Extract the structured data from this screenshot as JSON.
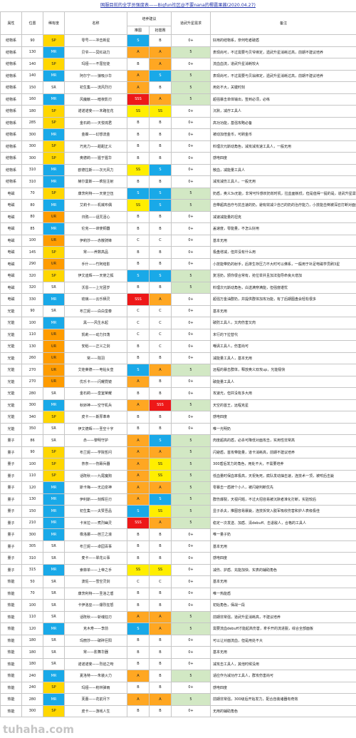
{
  "title": "国服目前的全学员强度表——Bigfun社区@不要nana的椰露果酱(2020.04.27)",
  "watermark": "tuhaha.com",
  "header": {
    "attr": "属性",
    "pos": "位置",
    "rarity": "稀有度",
    "name": "名称",
    "group": "培养建议",
    "push": "推图",
    "arena": "抢擂赛",
    "star": "道武升星需求",
    "note": "备注"
  },
  "rows": [
    {
      "attr": "结物系",
      "pos": "90",
      "rarity": "SP",
      "name": "零号——冲击新星",
      "push": "S",
      "arena": "B",
      "star": "0+",
      "note": "好用的结物系，奈何吃者破盾",
      "rc": "SP",
      "pc": "S",
      "ac": "",
      "sc": ""
    },
    {
      "attr": "结物系",
      "pos": "130",
      "rarity": "MR",
      "name": "贝爷——冥红战力",
      "push": "A",
      "arena": "A",
      "star": "5",
      "note": "表现尚可，不过需要与贝爷绑定，遗武升星消耗过高，前期不建议培养",
      "rc": "MR",
      "pc": "A",
      "ac": "A",
      "sc": "star"
    },
    {
      "attr": "结物系",
      "pos": "140",
      "rarity": "SP",
      "name": "玛娅——不屈狂徒",
      "push": "B",
      "arena": "A",
      "star": "0+",
      "note": "流血血流，道武升星消耗较大",
      "rc": "SP",
      "pc": "",
      "ac": "A",
      "sc": ""
    },
    {
      "attr": "结物系",
      "pos": "140",
      "rarity": "MR",
      "name": "阿尔宁——狼吸沙华",
      "push": "A",
      "arena": "S",
      "star": "5",
      "note": "表现尚可，不过需要与贝翁绑定，遗武升星消耗过高，前期不建议培养",
      "rc": "MR",
      "pc": "A",
      "ac": "S",
      "sc": "star"
    },
    {
      "attr": "结物系",
      "pos": "150",
      "rarity": "SR",
      "name": "初生集——流风烈刃",
      "push": "A",
      "arena": "B",
      "star": "5",
      "note": "用处不大，关键时刻",
      "rc": "",
      "pc": "A",
      "ac": "",
      "sc": "star"
    },
    {
      "attr": "结物系",
      "pos": "160",
      "rarity": "MR",
      "name": "风魔献——暗夜影刃",
      "push": "SSS",
      "arena": "A",
      "star": "5",
      "note": "超强暴击单体输出，签到必须，必练",
      "rc": "MR",
      "pc": "SSS",
      "ac": "A",
      "sc": "star"
    },
    {
      "attr": "结物系",
      "pos": "180",
      "rarity": "SP",
      "name": "诺诺诺斐——末路狂花",
      "push": "SS",
      "arena": "SS",
      "star": "0+",
      "note": "沉默，减疗工具人",
      "rc": "SP",
      "pc": "SS",
      "ac": "SS",
      "sc": ""
    },
    {
      "attr": "结物系",
      "pos": "285",
      "rarity": "SP",
      "name": "金石莉——天悦琉君",
      "push": "B",
      "arena": "B",
      "star": "0+",
      "note": "高功功能，基强攻略必备",
      "rc": "SP",
      "pc": "",
      "ac": "",
      "sc": ""
    },
    {
      "attr": "结物系",
      "pos": "300",
      "rarity": "MR",
      "name": "金蝶——幻想流金",
      "push": "B",
      "arena": "B",
      "star": "0+",
      "note": "被动加倍金币，可刷金币",
      "rc": "MR",
      "pc": "",
      "ac": "",
      "sc": ""
    },
    {
      "attr": "结物系",
      "pos": "300",
      "rarity": "SP",
      "name": "巧克力——甜甜正义",
      "push": "B",
      "arena": "B",
      "star": "0+",
      "note": "料理次元斯动角色，减攻减攻速工具人，一般无用",
      "rc": "SP",
      "pc": "",
      "ac": "",
      "sc": ""
    },
    {
      "attr": "结物系",
      "pos": "300",
      "rarity": "SP",
      "name": "奥德莉——猩于猩华",
      "push": "B",
      "arena": "B",
      "star": "0+",
      "note": "感电四度",
      "rc": "SP",
      "pc": "",
      "ac": "",
      "sc": ""
    },
    {
      "attr": "结物系",
      "pos": "310",
      "rarity": "MR",
      "name": "欧德拉斯——次元风力",
      "push": "SS",
      "arena": "S",
      "star": "0+",
      "note": "散血，减能量工具人",
      "rc": "MR",
      "pc": "SS",
      "ac": "S",
      "sc": ""
    },
    {
      "attr": "结物系",
      "pos": "310",
      "rarity": "MR",
      "name": "赫尔曼斯——疯狂注射",
      "push": "B",
      "arena": "B",
      "star": "0+",
      "note": "减攻减伤工具人，一般无用",
      "rc": "MR",
      "pc": "",
      "ac": "",
      "sc": ""
    },
    {
      "attr": "电磁",
      "pos": "70",
      "rarity": "SP",
      "name": "康茨利特——天使卫伍",
      "push": "S",
      "arena": "S",
      "star": "5",
      "note": "奶盾，奥义3s无能，非常可怜感叹奶效时机，拉血面板低，但是值得一提的是，道武升星需要双攻调血",
      "rc": "SP",
      "pc": "S",
      "ac": "S",
      "sc": "star"
    },
    {
      "attr": "电磁",
      "pos": "80",
      "rarity": "MR",
      "name": "艾莉卡——机械布偶",
      "push": "SS",
      "arena": "S",
      "star": "5",
      "note": "自带超高自疗与抗击速的奶，避有效减少自己的奶的治疗能力，小技能击倒被深召打断对面奥义",
      "rc": "MR",
      "pc": "SS",
      "ac": "S",
      "sc": "star"
    },
    {
      "attr": "电磁",
      "pos": "80",
      "rarity": "UR",
      "name": "归鸦——诅咒泪心",
      "push": "B",
      "arena": "B",
      "star": "0+",
      "note": "减速减能量的坦克",
      "rc": "UR",
      "pc": "",
      "ac": "",
      "sc": ""
    },
    {
      "attr": "电磁",
      "pos": "85",
      "rarity": "MR",
      "name": "伦克——谛使铜器",
      "push": "B",
      "arena": "B",
      "star": "0+",
      "note": "盖速度，零能量，不怎么好用",
      "rc": "MR",
      "pc": "",
      "ac": "",
      "sc": ""
    },
    {
      "attr": "电磁",
      "pos": "100",
      "rarity": "UR",
      "name": "伊莉莎——赤散骑锋",
      "push": "C",
      "arena": "C",
      "star": "0+",
      "note": "基本无用",
      "rc": "UR",
      "pc": "",
      "ac": "",
      "sc": ""
    },
    {
      "attr": "电磁",
      "pos": "145",
      "rarity": "SP",
      "name": "常——养数高品",
      "push": "B",
      "arena": "B",
      "star": "0+",
      "note": "极盘增减，但并没有什么用",
      "rc": "SP",
      "pc": "",
      "ac": "",
      "sc": ""
    },
    {
      "attr": "电磁",
      "pos": "290",
      "rarity": "UR",
      "name": "手什——竹阿结影",
      "push": "B",
      "arena": "B",
      "star": "0+",
      "note": "小技能带奶的射手，后排生存压力不大时可以佛系，一般用于补足电磁学员刷3星",
      "rc": "UR",
      "pc": "",
      "ac": "",
      "sc": ""
    },
    {
      "attr": "电磁",
      "pos": "320",
      "rarity": "SP",
      "name": "伊文迪辉——天使之狐",
      "push": "S",
      "arena": "S",
      "star": "5",
      "note": "复活奶，颁你很合常有，抢位举并且加法指导命良大增加",
      "rc": "SP",
      "pc": "S",
      "ac": "S",
      "sc": "star"
    },
    {
      "attr": "电磁",
      "pos": "320",
      "rarity": "SR",
      "name": "沃恩——上光团岁",
      "push": "B",
      "arena": "B",
      "star": "5",
      "note": "料理次元斯动角色，白送满穿满能，但强度堪忧",
      "rc": "",
      "pc": "",
      "ac": "",
      "sc": "star"
    },
    {
      "attr": "电磁",
      "pos": "330",
      "rarity": "MR",
      "name": "琉璃——云乐栖灵",
      "push": "SSS",
      "arena": "A",
      "star": "0+",
      "note": "超强万金油群奶，并提供群体加攻功能，有了后期图盘会轻松很多",
      "rc": "MR",
      "pc": "SSS",
      "ac": "A",
      "sc": ""
    },
    {
      "attr": "光能",
      "pos": "90",
      "rarity": "SR",
      "name": "布兰妮——白白蛮泰",
      "push": "C",
      "arena": "C",
      "star": "0+",
      "note": "基本无用",
      "rc": "",
      "pc": "",
      "ac": "",
      "sc": ""
    },
    {
      "attr": "光能",
      "pos": "100",
      "rarity": "MR",
      "name": "黑——风生水起",
      "push": "C",
      "arena": "C",
      "star": "0+",
      "note": "破防工具人，又肉伤害又肉",
      "rc": "MR",
      "pc": "",
      "ac": "",
      "sc": ""
    },
    {
      "attr": "光能",
      "pos": "110",
      "rarity": "UR",
      "name": "凯莉——动力扫荡",
      "push": "C",
      "arena": "C",
      "star": "0+",
      "note": "末行的下拉替代",
      "rc": "UR",
      "pc": "",
      "ac": "",
      "sc": ""
    },
    {
      "attr": "光能",
      "pos": "130",
      "rarity": "UR",
      "name": "安稻——正义之剑",
      "push": "B",
      "arena": "C",
      "star": "0+",
      "note": "嘲讽工具人，伤害尚可",
      "rc": "UR",
      "pc": "",
      "ac": "",
      "sc": ""
    },
    {
      "attr": "光能",
      "pos": "260",
      "rarity": "UR",
      "name": "常——殒羽",
      "push": "B",
      "arena": "B",
      "star": "0+",
      "note": "减能量工具人，基本无用",
      "rc": "UR",
      "pc": "",
      "ac": "",
      "sc": ""
    },
    {
      "attr": "光能",
      "pos": "270",
      "rarity": "UR",
      "name": "艾娃莱德——电钻女皇",
      "push": "S",
      "arena": "A",
      "star": "5",
      "note": "远程的暴击群体，释放奥义双攻up，光能极快",
      "rc": "UR",
      "pc": "S",
      "ac": "A",
      "sc": "star"
    },
    {
      "attr": "光能",
      "pos": "270",
      "rarity": "UR",
      "name": "优乐卡——闪耀霓镜",
      "push": "A",
      "arena": "B",
      "star": "0+",
      "note": "破能量工具人",
      "rc": "UR",
      "pc": "A",
      "ac": "",
      "sc": ""
    },
    {
      "attr": "光能",
      "pos": "280",
      "rarity": "SR",
      "name": "金石莉——皇室荣耀",
      "push": "B",
      "arena": "B",
      "star": "0+",
      "note": "攻速光，但并没有多大用",
      "rc": "",
      "pc": "",
      "ac": "",
      "sc": ""
    },
    {
      "attr": "光能",
      "pos": "300",
      "rarity": "MR",
      "name": "秋娇神——空守机兵",
      "push": "A",
      "arena": "SSS",
      "star": "5",
      "note": "天空的首王，远程克星",
      "rc": "MR",
      "pc": "A",
      "ac": "SSS",
      "sc": "star"
    },
    {
      "attr": "光能",
      "pos": "340",
      "rarity": "SP",
      "name": "皮卡——斯厚革命",
      "push": "B",
      "arena": "B",
      "star": "0+",
      "note": "感电四度",
      "rc": "SP",
      "pc": "",
      "ac": "",
      "sc": ""
    },
    {
      "attr": "光能",
      "pos": "350",
      "rarity": "SR",
      "name": "伊文德辉——圣空十字",
      "push": "B",
      "arena": "B",
      "star": "0+",
      "note": "唯一光明奶",
      "rc": "",
      "pc": "",
      "ac": "",
      "sc": ""
    },
    {
      "attr": "量子",
      "pos": "86",
      "rarity": "SR",
      "name": "赤——黎明守护",
      "push": "A",
      "arena": "S",
      "star": "5",
      "note": "肉度超高的盾，必杀可降低对面攻击，实用性非常高",
      "rc": "",
      "pc": "A",
      "ac": "S",
      "sc": "star"
    },
    {
      "attr": "量子",
      "pos": "90",
      "rarity": "SP",
      "name": "布兰妮——学院哲问",
      "push": "A",
      "arena": "A",
      "star": "5",
      "note": "闪避盾，首攻带能量，道卡消耗高，前期不建议培养",
      "rc": "SP",
      "pc": "A",
      "ac": "A",
      "sc": "star"
    },
    {
      "attr": "量子",
      "pos": "100",
      "rarity": "SP",
      "name": "奈奈——伤籁兵器",
      "push": "A",
      "arena": "SS",
      "star": "5",
      "note": "300盾后发力的角色，用处不大，不需要培养",
      "rc": "SP",
      "pc": "A",
      "ac": "SS",
      "sc": "star"
    },
    {
      "attr": "量子",
      "pos": "110",
      "rarity": "SP",
      "name": "话既秋——九尾魔狗",
      "push": "A",
      "arena": "SS",
      "star": "5",
      "note": "低血量时保血率极高，天祝免死，腐队发动抽击速，连技术一顶，被咬后击毙",
      "rc": "SP",
      "pc": "A",
      "ac": "SS",
      "sc": "star"
    },
    {
      "attr": "量子",
      "pos": "120",
      "rarity": "MR",
      "name": "斯卡梅——无边泉神",
      "push": "A",
      "arena": "A",
      "star": "5",
      "note": "零暴击一盾牌个小人，被闪避判断优先",
      "rc": "MR",
      "pc": "A",
      "ac": "A",
      "sc": "star"
    },
    {
      "attr": "量子",
      "pos": "130",
      "rarity": "MR",
      "name": "伊利斯——刻辉巨刃",
      "push": "A",
      "arena": "S",
      "star": "5",
      "note": "群伤爆裂，天视问题，不过大招容易被沉默者准化打断，实验较后",
      "rc": "MR",
      "pc": "A",
      "ac": "S",
      "sc": "star"
    },
    {
      "attr": "量子",
      "pos": "150",
      "rarity": "MR",
      "name": "初生集——夫赞吾品",
      "push": "S",
      "arena": "SS",
      "star": "5",
      "note": "显子杀夫，推图容易暴毙，连技拆突入脱军吸收伤害和护人表级极佳",
      "rc": "MR",
      "pc": "S",
      "ac": "SS",
      "sc": "star"
    },
    {
      "attr": "量子",
      "pos": "210",
      "rarity": "MR",
      "name": "卡米拉——煮烈幽灵",
      "push": "SSS",
      "arena": "A",
      "star": "5",
      "note": "稳定一次发送、加盾、清debuff、击退敌人，合格的工具人",
      "rc": "MR",
      "pc": "SSS",
      "ac": "A",
      "sc": "star"
    },
    {
      "attr": "量子",
      "pos": "300",
      "rarity": "MR",
      "name": "橡洛娜——芭兰之滚",
      "push": "B",
      "arena": "B",
      "star": "0+",
      "note": "唯一量子奶",
      "rc": "MR",
      "pc": "",
      "ac": "",
      "sc": ""
    },
    {
      "attr": "量子",
      "pos": "305",
      "rarity": "SR",
      "name": "布兰妮——卓园百事",
      "push": "B",
      "arena": "B",
      "star": "0+",
      "note": "基本无用",
      "rc": "",
      "pc": "",
      "ac": "",
      "sc": ""
    },
    {
      "attr": "量子",
      "pos": "310",
      "rarity": "SR",
      "name": "麦卡——翠花公事",
      "push": "B",
      "arena": "B",
      "star": "0+",
      "note": "感电四度",
      "rc": "",
      "pc": "",
      "ac": "",
      "sc": ""
    },
    {
      "attr": "量子",
      "pos": "315",
      "rarity": "MR",
      "name": "索菲单——上帝之手",
      "push": "SS",
      "arena": "SS",
      "star": "0+",
      "note": "减伤、护盾、充能加快、实表的辅助角色",
      "rc": "MR",
      "pc": "SS",
      "ac": "SS",
      "sc": ""
    },
    {
      "attr": "热能",
      "pos": "50",
      "rarity": "SR",
      "name": "波佐——雪空灵剑",
      "push": "C",
      "arena": "C",
      "star": "0+",
      "note": "基本无用",
      "rc": "",
      "pc": "",
      "ac": "",
      "sc": ""
    },
    {
      "attr": "热能",
      "pos": "70",
      "rarity": "SR",
      "name": "康茨利特——圣洛之盾",
      "push": "B",
      "arena": "B",
      "star": "0+",
      "note": "唯一热能盾",
      "rc": "",
      "pc": "",
      "ac": "",
      "sc": ""
    },
    {
      "attr": "热能",
      "pos": "100",
      "rarity": "SR",
      "name": "卡伊洛巫——爆烈狂怒",
      "push": "B",
      "arena": "B",
      "star": "0+",
      "note": "初始角色，保战一段",
      "rc": "",
      "pc": "",
      "ac": "",
      "sc": ""
    },
    {
      "attr": "热能",
      "pos": "110",
      "rarity": "SR",
      "name": "话既秋——斩魂狂刃",
      "push": "A",
      "arena": "A",
      "star": "5",
      "note": "前期非常强，道武升星消耗高，不建议培养",
      "rc": "",
      "pc": "A",
      "ac": "A",
      "sc": "star"
    },
    {
      "attr": "热能",
      "pos": "120",
      "rarity": "MR",
      "name": "克木寿——李前",
      "push": "S",
      "arena": "A",
      "star": "5",
      "note": "需要流血debuff才能起高伤害，拿手开的流进脱，综合全部面板",
      "rc": "MR",
      "pc": "S",
      "ac": "A",
      "sc": "star"
    },
    {
      "attr": "热能",
      "pos": "180",
      "rarity": "SR",
      "name": "玛丽莎——破碎巨阳",
      "push": "B",
      "arena": "B",
      "star": "0+",
      "note": "可以让对面流血，但是用处不大",
      "rc": "",
      "pc": "",
      "ac": "",
      "sc": ""
    },
    {
      "attr": "热能",
      "pos": "180",
      "rarity": "SR",
      "name": "常——影舞华器",
      "push": "B",
      "arena": "B",
      "star": "0+",
      "note": "基本无用",
      "rc": "",
      "pc": "",
      "ac": "",
      "sc": ""
    },
    {
      "attr": "热能",
      "pos": "180",
      "rarity": "SR",
      "name": "诺诺诺斐——烈焰之吻",
      "push": "B",
      "arena": "B",
      "star": "0+",
      "note": "减攻击工具人，其他时候没用",
      "rc": "",
      "pc": "",
      "ac": "",
      "sc": ""
    },
    {
      "attr": "热能",
      "pos": "240",
      "rarity": "MR",
      "name": "夏洛特——朱装火力",
      "push": "A",
      "arena": "B",
      "star": "5",
      "note": "适应作为减功疗工具人，群攻伤害尚可",
      "rc": "MR",
      "pc": "A",
      "ac": "",
      "sc": "star"
    },
    {
      "attr": "热能",
      "pos": "240",
      "rarity": "SP",
      "name": "玛娅——枪林弹雨",
      "push": "B",
      "arena": "B",
      "star": "0+",
      "note": "感电四度",
      "rc": "SP",
      "pc": "",
      "ac": "",
      "sc": ""
    },
    {
      "attr": "热能",
      "pos": "280",
      "rarity": "MR",
      "name": "芙蕾——花前月下",
      "push": "A",
      "arena": "A",
      "star": "5",
      "note": "前期非常强，300级后开始发力，配合自装诸器有奇效",
      "rc": "MR",
      "pc": "A",
      "ac": "A",
      "sc": "star"
    },
    {
      "attr": "热能",
      "pos": "300",
      "rarity": "SP",
      "name": "皮卡——游戏人生",
      "push": "B",
      "arena": "B",
      "star": "0+",
      "note": "无用的辅助角色",
      "rc": "SP",
      "pc": "",
      "ac": "",
      "sc": ""
    }
  ]
}
